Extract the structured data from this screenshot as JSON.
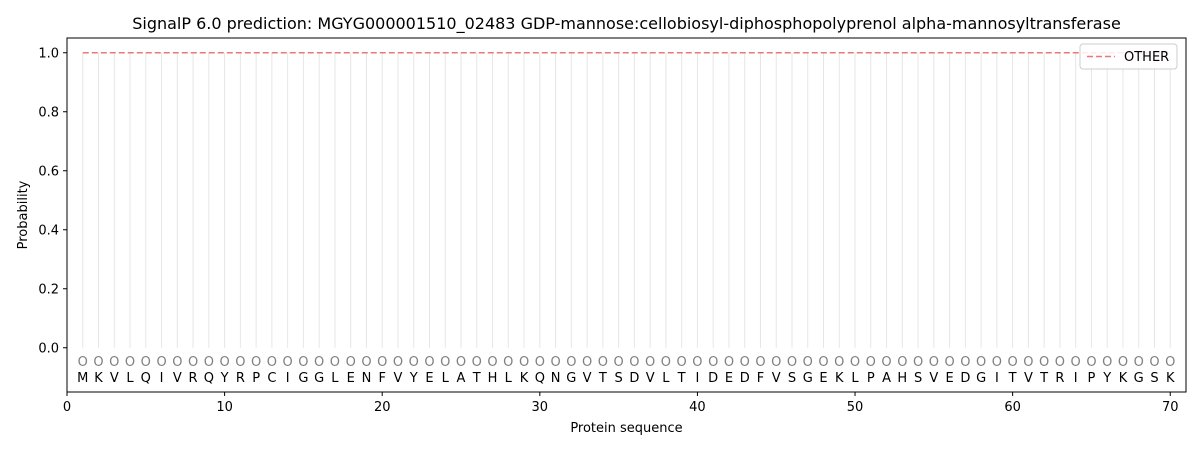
{
  "chart_data": {
    "type": "line",
    "title": "SignalP 6.0 prediction: MGYG000001510_02483 GDP-mannose:cellobiosyl-diphosphopolyprenol alpha-mannosyltransferase",
    "xlabel": "Protein sequence",
    "ylabel": "Probability",
    "xlim": [
      0,
      71
    ],
    "ylim": [
      -0.15,
      1.05
    ],
    "x_ticks": [
      0,
      10,
      20,
      30,
      40,
      50,
      60,
      70
    ],
    "y_ticks": [
      0.0,
      0.2,
      0.4,
      0.6,
      0.8,
      1.0
    ],
    "y_tick_labels": [
      "0.0",
      "0.2",
      "0.4",
      "0.6",
      "0.8",
      "1.0"
    ],
    "sequence": [
      "M",
      "K",
      "V",
      "L",
      "Q",
      "I",
      "V",
      "R",
      "Q",
      "Y",
      "R",
      "P",
      "C",
      "I",
      "G",
      "G",
      "L",
      "E",
      "N",
      "F",
      "V",
      "Y",
      "E",
      "L",
      "A",
      "T",
      "H",
      "L",
      "K",
      "Q",
      "N",
      "G",
      "V",
      "T",
      "S",
      "D",
      "V",
      "L",
      "T",
      "I",
      "D",
      "E",
      "D",
      "F",
      "V",
      "S",
      "G",
      "E",
      "K",
      "L",
      "P",
      "A",
      "H",
      "S",
      "V",
      "E",
      "D",
      "G",
      "I",
      "T",
      "V",
      "T",
      "R",
      "I",
      "P",
      "Y",
      "K",
      "G",
      "S",
      "K"
    ],
    "predicted_labels": [
      "O",
      "O",
      "O",
      "O",
      "O",
      "O",
      "O",
      "O",
      "O",
      "O",
      "O",
      "O",
      "O",
      "O",
      "O",
      "O",
      "O",
      "O",
      "O",
      "O",
      "O",
      "O",
      "O",
      "O",
      "O",
      "O",
      "O",
      "O",
      "O",
      "O",
      "O",
      "O",
      "O",
      "O",
      "O",
      "O",
      "O",
      "O",
      "O",
      "O",
      "O",
      "O",
      "O",
      "O",
      "O",
      "O",
      "O",
      "O",
      "O",
      "O",
      "O",
      "O",
      "O",
      "O",
      "O",
      "O",
      "O",
      "O",
      "O",
      "O",
      "O",
      "O",
      "O",
      "O",
      "O",
      "O",
      "O",
      "O",
      "O",
      "O"
    ],
    "series": [
      {
        "name": "OTHER",
        "color": "#e8787a",
        "style": "dashed",
        "x": [
          1,
          70
        ],
        "y": [
          1.0,
          1.0
        ]
      }
    ],
    "legend": {
      "placement": "top-right"
    },
    "grid": false
  }
}
